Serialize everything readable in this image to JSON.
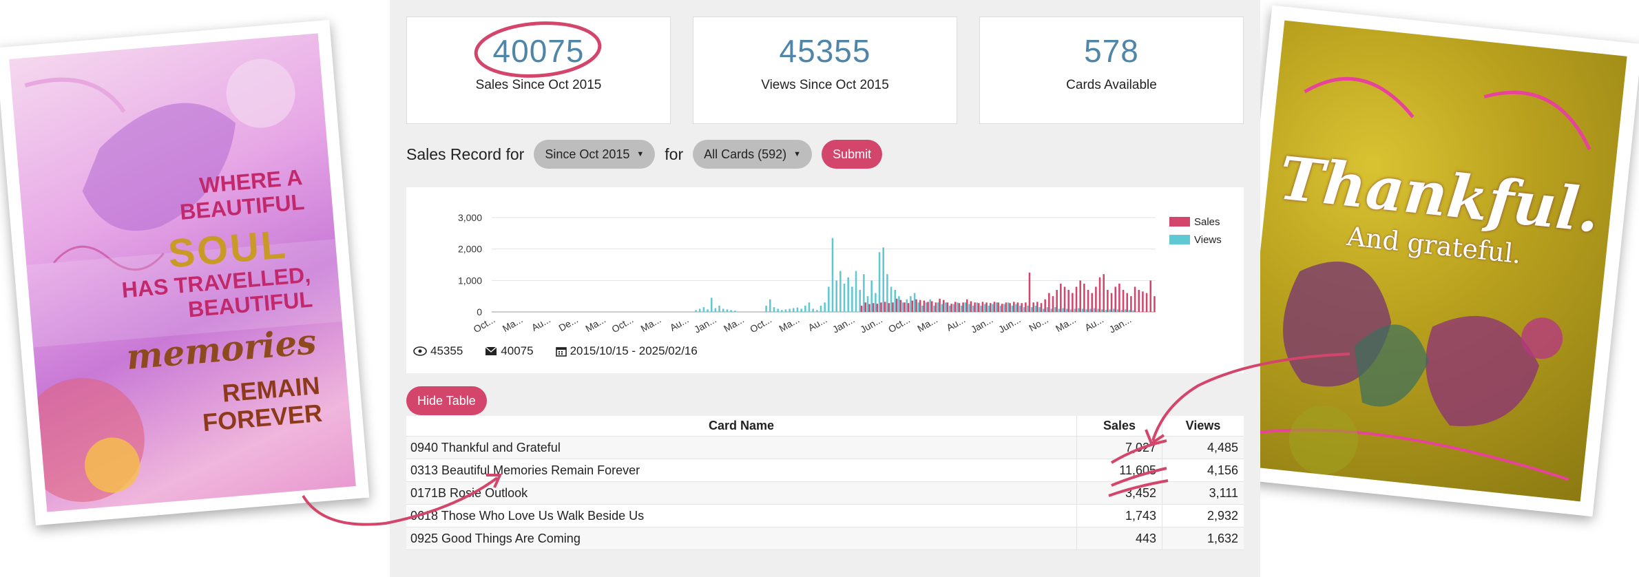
{
  "stats": [
    {
      "value": "40075",
      "label": "Sales Since Oct 2015"
    },
    {
      "value": "45355",
      "label": "Views Since Oct 2015"
    },
    {
      "value": "578",
      "label": "Cards Available"
    }
  ],
  "controls": {
    "prefix": "Sales Record for",
    "period_value": "Since Oct 2015",
    "connector": "for",
    "cards_value": "All Cards (592)",
    "submit_label": "Submit"
  },
  "chart_info": {
    "views": "45355",
    "sales": "40075",
    "date_range": "2015/10/15 - 2025/02/16"
  },
  "hide_table_label": "Hide Table",
  "table": {
    "headers": [
      "Card Name",
      "Sales",
      "Views"
    ],
    "rows": [
      {
        "name": "0940 Thankful and Grateful",
        "sales": "7,027",
        "views": "4,485"
      },
      {
        "name": "0313 Beautiful Memories Remain Forever",
        "sales": "11,605",
        "views": "4,156"
      },
      {
        "name": "0171B Rosie Outlook",
        "sales": "3,452",
        "views": "3,111"
      },
      {
        "name": "0618 Those Who Love Us Walk Beside Us",
        "sales": "1,743",
        "views": "2,932"
      },
      {
        "name": "0925 Good Things Are Coming",
        "sales": "443",
        "views": "1,632"
      }
    ]
  },
  "cards": {
    "left": {
      "line1": "WHERE A BEAUTIFUL",
      "line2": "SOUL",
      "line3": "HAS TRAVELLED, BEAUTIFUL",
      "line4": "memories",
      "line5": "REMAIN FOREVER"
    },
    "right": {
      "line1": "Thankful.",
      "line2": "And grateful."
    }
  },
  "colors": {
    "sales": "#d4456b",
    "views": "#5fc8d2",
    "stat_number": "#4f86a8",
    "annotation": "#d4456b"
  },
  "chart_data": {
    "type": "bar",
    "ylim": [
      0,
      3000
    ],
    "yticks": [
      "0",
      "1,000",
      "2,000",
      "3,000"
    ],
    "xticks": [
      "Oct...",
      "Ma...",
      "Au...",
      "De...",
      "Ma...",
      "Oct...",
      "Ma...",
      "Au...",
      "Jan...",
      "Ma...",
      "Oct...",
      "Ma...",
      "Au...",
      "Jan...",
      "Jun...",
      "Oct...",
      "Ma...",
      "Au...",
      "Jan...",
      "Jun...",
      "No...",
      "Ma...",
      "Au...",
      "Jan..."
    ],
    "legend": [
      "Sales",
      "Views"
    ],
    "legend_position": "top-right",
    "series": [
      {
        "name": "Sales",
        "values": [
          0,
          0,
          0,
          0,
          0,
          0,
          0,
          0,
          0,
          0,
          0,
          0,
          0,
          0,
          0,
          0,
          0,
          0,
          0,
          0,
          0,
          0,
          0,
          0,
          0,
          0,
          0,
          0,
          0,
          0,
          0,
          0,
          0,
          0,
          0,
          0,
          0,
          0,
          0,
          0,
          0,
          0,
          0,
          0,
          0,
          0,
          0,
          0,
          0,
          0,
          0,
          0,
          0,
          0,
          0,
          0,
          0,
          0,
          0,
          0,
          0,
          0,
          0,
          0,
          0,
          0,
          0,
          0,
          0,
          0,
          0,
          0,
          0,
          0,
          0,
          0,
          0,
          0,
          0,
          0,
          0,
          0,
          0,
          0,
          0,
          0,
          0,
          0,
          0,
          0,
          0,
          0,
          0,
          0,
          200,
          300,
          250,
          280,
          260,
          300,
          320,
          280,
          300,
          420,
          380,
          300,
          280,
          360,
          400,
          380,
          360,
          320,
          340,
          300,
          420,
          380,
          300,
          260,
          320,
          280,
          300,
          400,
          340,
          300,
          280,
          320,
          300,
          280,
          320,
          300,
          260,
          300,
          280,
          320,
          300,
          280,
          300,
          1250,
          300,
          320,
          280,
          400,
          600,
          500,
          700,
          900,
          800,
          700,
          600,
          800,
          1000,
          900,
          700,
          600,
          800,
          1100,
          1200,
          700,
          600,
          800,
          900,
          700,
          600,
          500,
          800,
          700,
          650,
          600,
          1000,
          500
        ]
      },
      {
        "name": "Views",
        "values": [
          0,
          0,
          0,
          0,
          0,
          0,
          0,
          0,
          0,
          0,
          0,
          0,
          0,
          0,
          0,
          0,
          0,
          0,
          0,
          0,
          0,
          0,
          0,
          0,
          0,
          0,
          0,
          0,
          0,
          0,
          0,
          0,
          0,
          0,
          0,
          0,
          0,
          0,
          0,
          0,
          0,
          0,
          0,
          0,
          0,
          0,
          0,
          0,
          0,
          0,
          0,
          0,
          60,
          100,
          150,
          80,
          450,
          120,
          200,
          100,
          80,
          60,
          40,
          0,
          0,
          0,
          0,
          0,
          0,
          0,
          200,
          400,
          150,
          100,
          60,
          80,
          100,
          120,
          140,
          100,
          200,
          300,
          100,
          60,
          200,
          300,
          800,
          2350,
          1000,
          1300,
          900,
          1100,
          800,
          1300,
          700,
          1200,
          500,
          1000,
          600,
          1900,
          2050,
          1200,
          800,
          700,
          500,
          300,
          400,
          500,
          600,
          300,
          200,
          300,
          400,
          200,
          300,
          250,
          300,
          200,
          250,
          300,
          200,
          300,
          250,
          200,
          300,
          200,
          250,
          200,
          250,
          300,
          200,
          250,
          300,
          200,
          250,
          200,
          150,
          200,
          150,
          200,
          150,
          100,
          150,
          100,
          150,
          100,
          120,
          100,
          80,
          100,
          120,
          100,
          80,
          100,
          120,
          100,
          80,
          60,
          80,
          100,
          80,
          60,
          80,
          60,
          50
        ]
      }
    ]
  }
}
